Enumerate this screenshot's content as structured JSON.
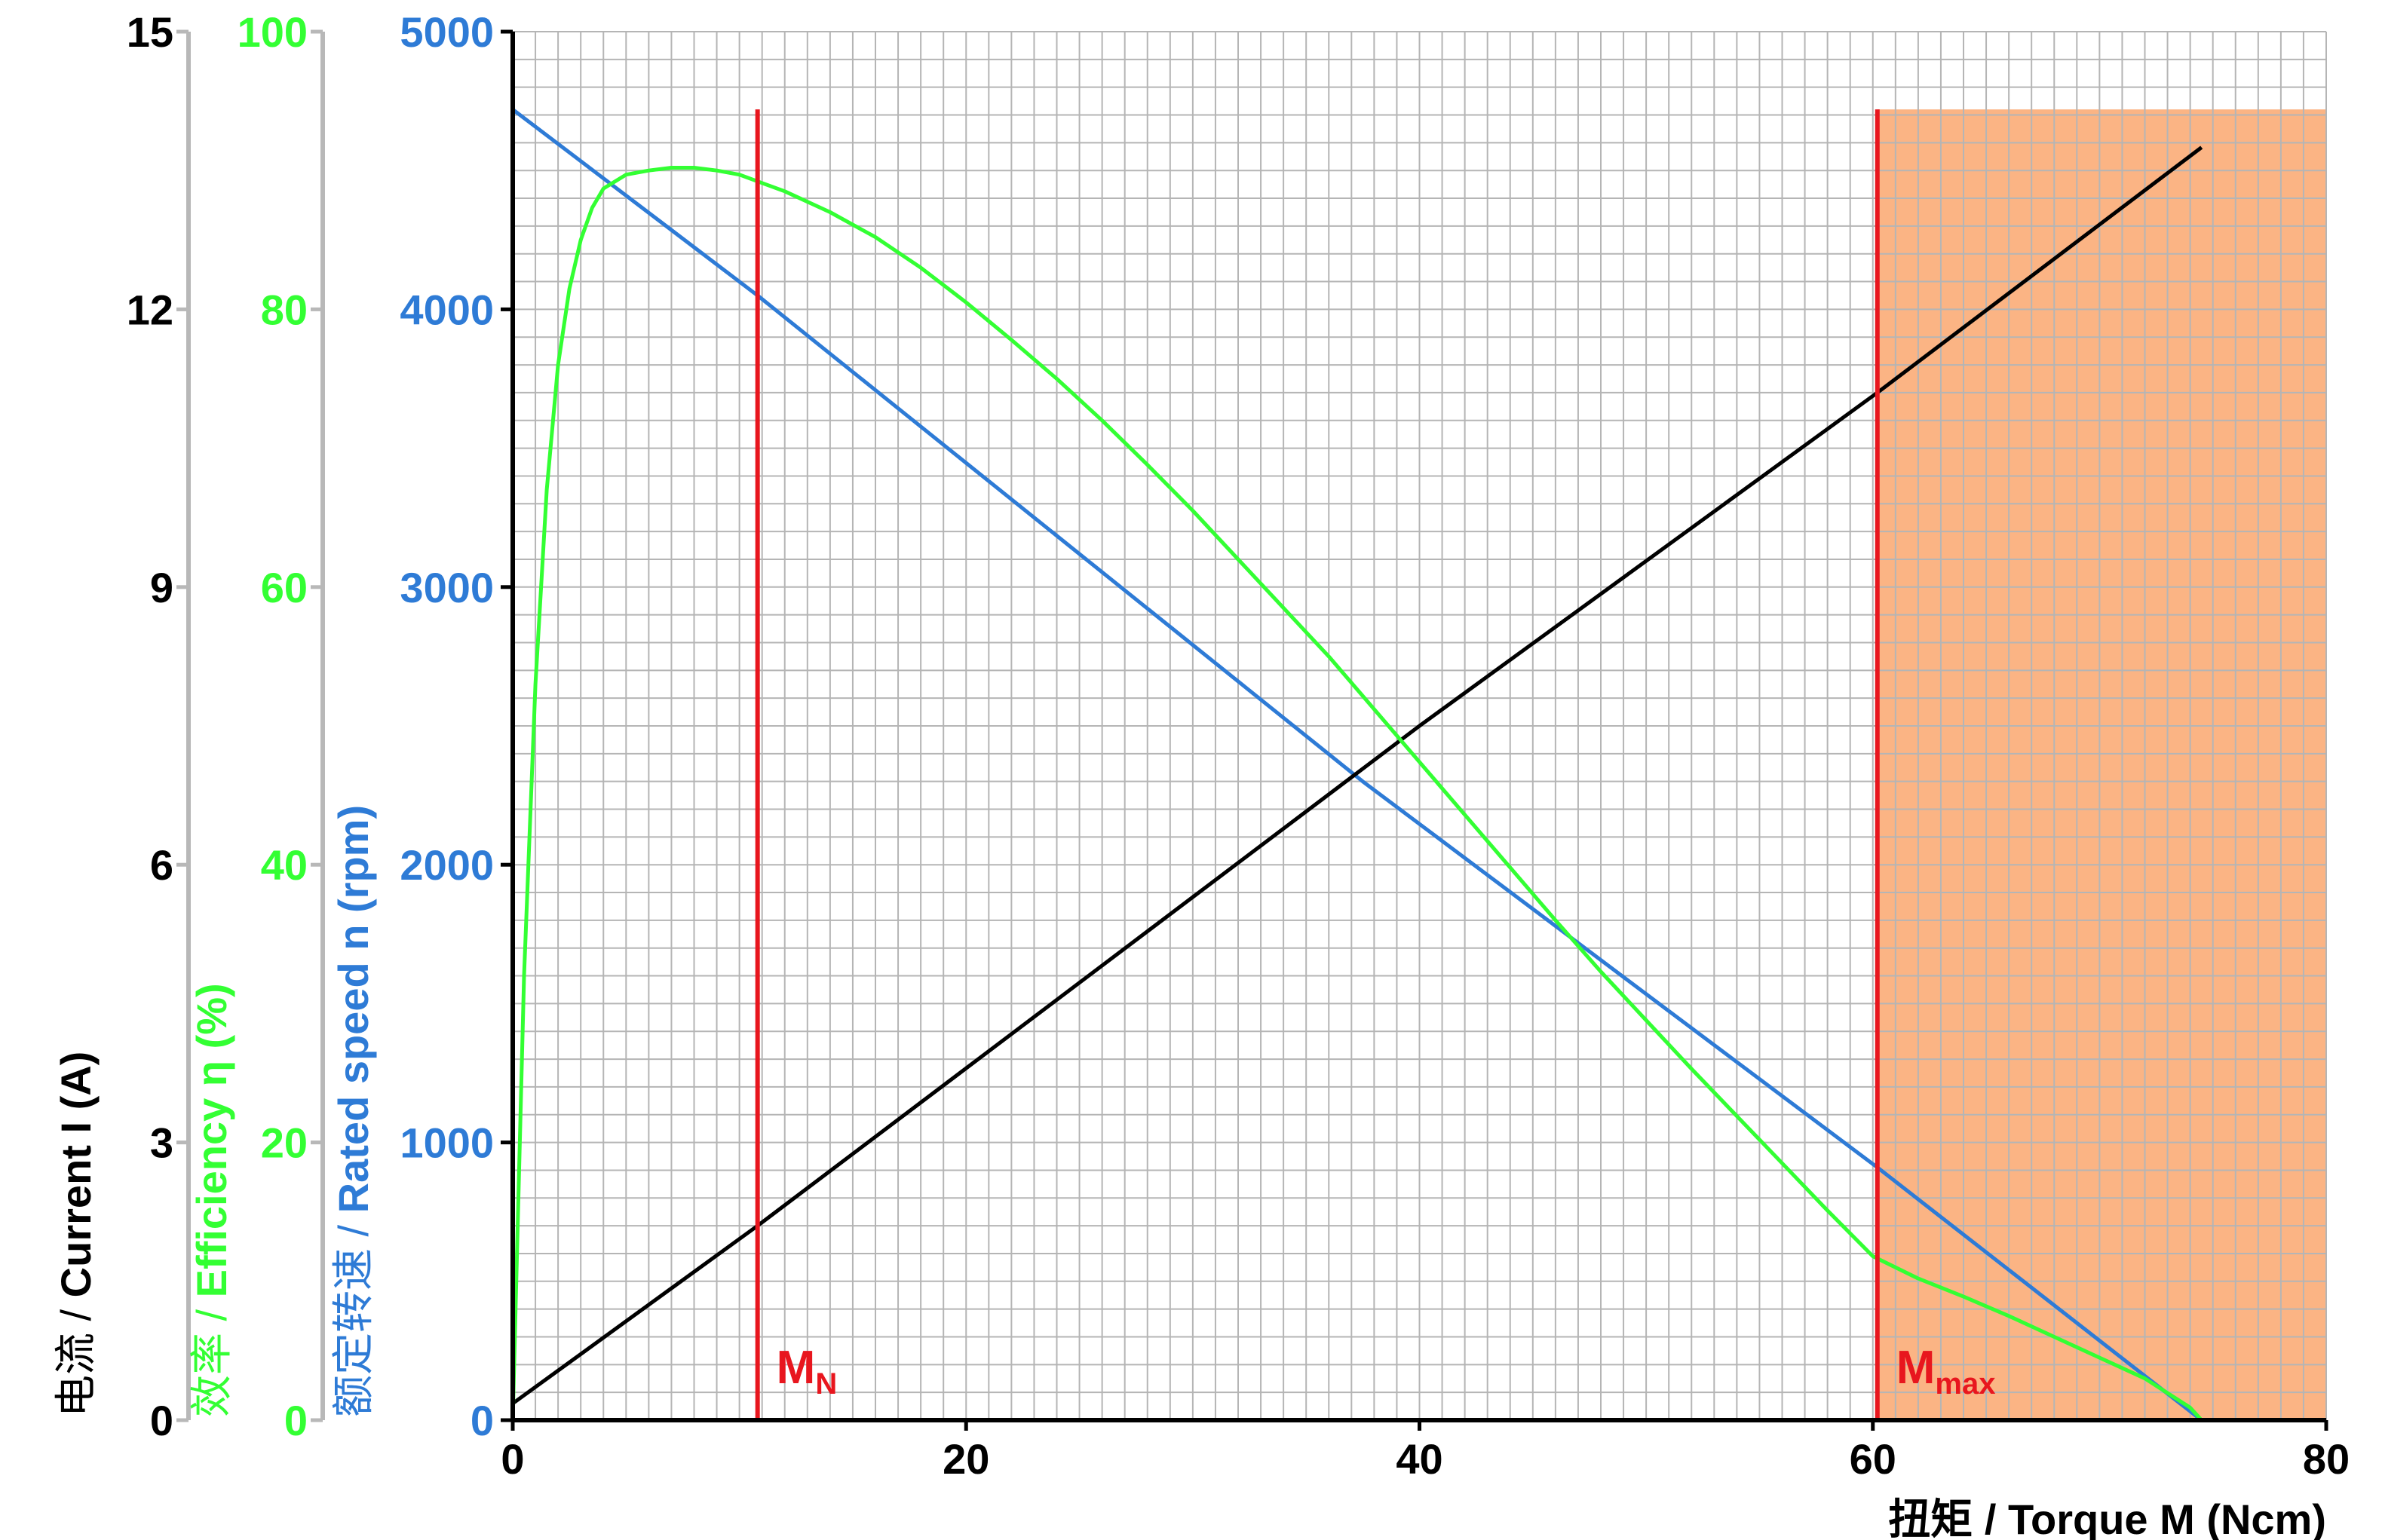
{
  "chart_data": {
    "type": "line",
    "title": "",
    "xlabel": "扭矩 / Torque M (Ncm)",
    "xlim": [
      0,
      80
    ],
    "x_ticks": [
      "0",
      "20",
      "40",
      "60",
      "80"
    ],
    "grid": true,
    "y_axes": [
      {
        "id": "current",
        "label_prefix": "电流 / ",
        "label_main": "Current I (A)",
        "color": "#000000",
        "ylim": [
          0,
          15
        ],
        "ticks": [
          "0",
          "3",
          "6",
          "9",
          "12",
          "15"
        ]
      },
      {
        "id": "efficiency",
        "label_prefix": "效率 / ",
        "label_main": "Efficiency η  (%)",
        "color": "#33ff33",
        "ylim": [
          0,
          100
        ],
        "ticks": [
          "0",
          "20",
          "40",
          "60",
          "80",
          "100"
        ]
      },
      {
        "id": "speed",
        "label_prefix": "额定转速 / ",
        "label_main": "Rated speed n (rpm)",
        "color": "#2e7bd6",
        "ylim": [
          0,
          5000
        ],
        "ticks": [
          "0",
          "1000",
          "2000",
          "3000",
          "4000",
          "5000"
        ]
      }
    ],
    "series": [
      {
        "axis": "speed",
        "color": "#2e7bd6",
        "x": [
          0,
          10.8,
          37.5,
          60.2,
          74.5
        ],
        "y": [
          4720,
          4050,
          2300,
          910,
          0
        ]
      },
      {
        "axis": "current",
        "color": "#000000",
        "x": [
          0,
          10.8,
          40,
          60.2,
          74.5
        ],
        "y": [
          0.18,
          2.1,
          7.5,
          11.1,
          13.75
        ]
      },
      {
        "axis": "efficiency",
        "color": "#33ff33",
        "x": [
          0,
          0.5,
          1,
          1.5,
          2,
          2.5,
          3,
          3.5,
          4,
          5,
          6,
          7,
          8,
          9,
          10,
          11,
          12,
          14,
          16,
          18,
          20,
          22,
          24,
          26,
          28,
          30,
          32,
          34,
          36,
          38,
          40,
          42,
          44,
          46,
          48,
          50,
          52,
          54,
          56,
          58,
          60,
          62,
          64,
          66,
          68,
          70,
          72,
          74,
          74.5
        ],
        "y": [
          0,
          32,
          53,
          67,
          76,
          81.5,
          85,
          87.3,
          88.7,
          89.7,
          90,
          90.2,
          90.2,
          90,
          89.7,
          89.1,
          88.5,
          87,
          85.2,
          83,
          80.5,
          77.8,
          75,
          72,
          68.8,
          65.5,
          62,
          58.5,
          55,
          51.2,
          47.4,
          43.6,
          39.8,
          36,
          32.3,
          28.8,
          25.3,
          21.9,
          18.5,
          15.1,
          11.8,
          10.2,
          8.9,
          7.5,
          6,
          4.5,
          3,
          0.9,
          0
        ]
      }
    ],
    "markers": [
      {
        "label": "M",
        "sub": "N",
        "x": 10.8,
        "color": "#e8161e"
      },
      {
        "label": "M",
        "sub": "max",
        "x": 60.2,
        "color": "#e8161e"
      }
    ],
    "overload_region": {
      "x_from": 60.2,
      "x_to": 80,
      "y_top_speed": 4720,
      "color": "#fbb484"
    }
  }
}
